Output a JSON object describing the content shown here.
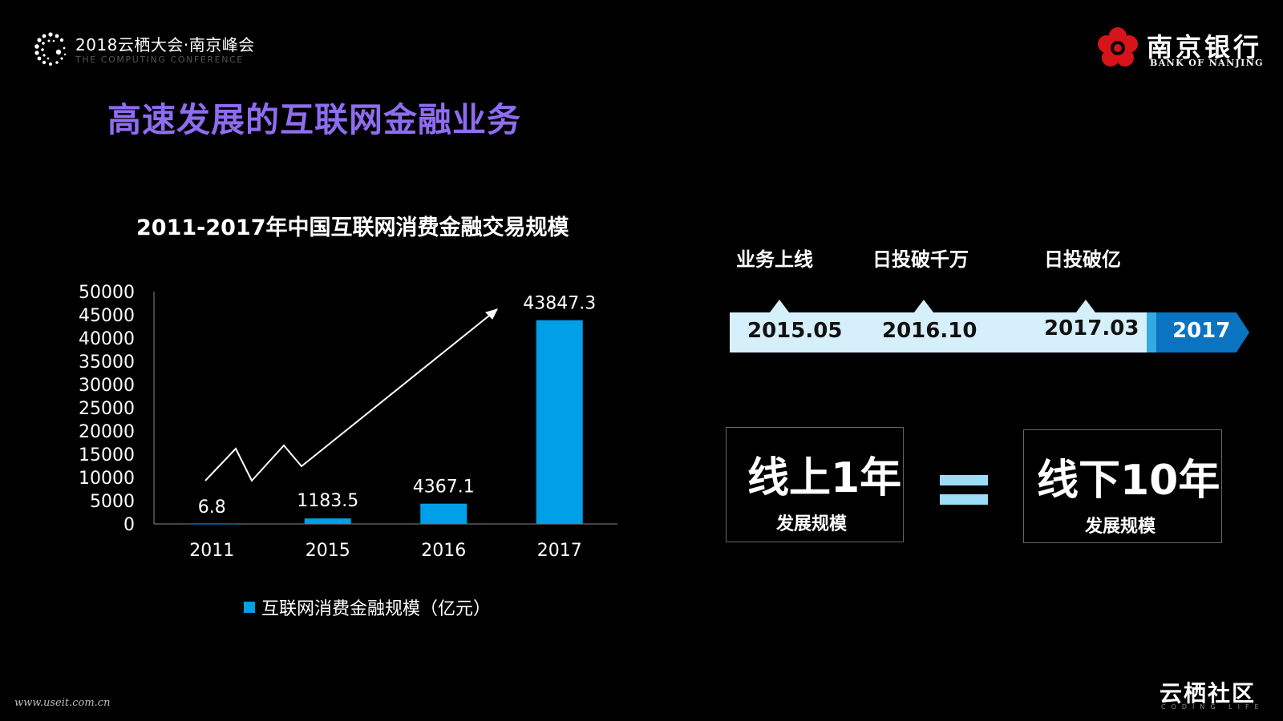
{
  "header": {
    "conference_title": "2018云栖大会·南京峰会",
    "conference_subtitle": "THE COMPUTING CONFERENCE",
    "bank_name_cn": "南京银行",
    "bank_name_en": "BANK OF NANJING"
  },
  "page_title": "高速发展的互联网金融业务",
  "chart_data": {
    "type": "bar",
    "title": "2011-2017年中国互联网消费金融交易规模",
    "categories": [
      "2011",
      "2015",
      "2016",
      "2017"
    ],
    "series": [
      {
        "name": "互联网消费金融规模（亿元）",
        "values": [
          6.8,
          1183.5,
          4367.1,
          43847.3
        ]
      }
    ],
    "data_labels": [
      "6.8",
      "1183.5",
      "4367.1",
      "43847.3"
    ],
    "y_ticks": [
      "0",
      "5000",
      "10000",
      "15000",
      "20000",
      "25000",
      "30000",
      "35000",
      "40000",
      "45000",
      "50000"
    ],
    "ylim": [
      0,
      50000
    ],
    "grid": false,
    "legend_position": "bottom",
    "bar_color": "#009fe8"
  },
  "timeline": {
    "milestones": [
      {
        "label": "业务上线",
        "date": "2015.05"
      },
      {
        "label": "日投破千万",
        "date": "2016.10"
      },
      {
        "label": "日投破亿",
        "date": "2017.03"
      }
    ],
    "end_label": "2017"
  },
  "comparison": {
    "left_big": "线上1年",
    "left_small": "发展规模",
    "right_big": "线下10年",
    "right_small": "发展规模"
  },
  "footer": {
    "watermark": "www.useit.com.cn",
    "community": "云栖社区",
    "community_sub": "CODING LIFE"
  },
  "colors": {
    "title_purple": "#8f6cf2",
    "bar_blue": "#009fe8",
    "timeline_light": "#d6f0fb",
    "timeline_dark": "#0a74c1",
    "bank_red": "#d7141a"
  },
  "icons": {
    "conference_logo": "cloud-dots-logo-icon",
    "bank_logo": "flower-logo-icon",
    "trend_arrow": "arrow-up-right-icon",
    "equals": "equals-icon"
  }
}
